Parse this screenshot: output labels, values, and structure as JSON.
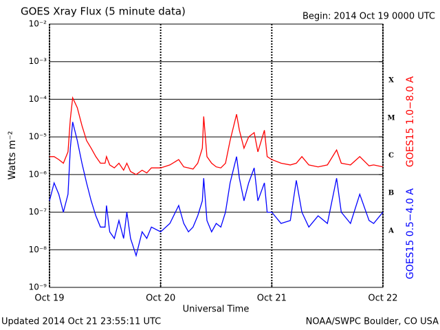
{
  "chart_data": {
    "type": "line",
    "title": "GOES Xray Flux (5 minute data)",
    "subtitle": "Begin:  2014 Oct 19 0000 UTC",
    "y_label": "Watts m⁻²",
    "x_label": "Universal Time",
    "footer_left": "Updated 2014 Oct 21 23:55:11 UTC",
    "footer_right": "NOAA/SWPC Boulder, CO USA",
    "class_labels": [
      "X",
      "M",
      "C",
      "B",
      "A"
    ],
    "log_y": true,
    "grid": true,
    "legend": "right",
    "xlim": [
      0,
      72
    ],
    "xticks": [
      {
        "value": 0,
        "label": "Oct 19"
      },
      {
        "value": 24,
        "label": "Oct 20"
      },
      {
        "value": 48,
        "label": "Oct 21"
      },
      {
        "value": 72,
        "label": "Oct 22"
      }
    ],
    "ylim": [
      1e-09,
      0.01
    ],
    "yticks": [
      {
        "value": 0.01,
        "label": "10⁻²"
      },
      {
        "value": 0.001,
        "label": "10⁻³"
      },
      {
        "value": 0.0001,
        "label": "10⁻⁴"
      },
      {
        "value": 1e-05,
        "label": "10⁻⁵"
      },
      {
        "value": 1e-06,
        "label": "10⁻⁶"
      },
      {
        "value": 1e-07,
        "label": "10⁻⁷"
      },
      {
        "value": 1e-08,
        "label": "10⁻⁸"
      },
      {
        "value": 1e-09,
        "label": "10⁻⁹"
      }
    ],
    "x": [
      0,
      1,
      2,
      3,
      4,
      4.5,
      5,
      6,
      7,
      8,
      9,
      10,
      11,
      12,
      12.3,
      13,
      14,
      15,
      16,
      16.7,
      17.5,
      18.7,
      20,
      21,
      22,
      24,
      26,
      27.9,
      29,
      30,
      31,
      32,
      33,
      33.3,
      34,
      35,
      36,
      37,
      38,
      39,
      40.4,
      41,
      42,
      43,
      44.2,
      45,
      46.4,
      47,
      48,
      50,
      52,
      53.3,
      54.5,
      56,
      58,
      60,
      62,
      63,
      65,
      67,
      69,
      70,
      72
    ],
    "series": [
      {
        "name": "GOES15 1.0−8.0 A",
        "color": "#ff0000",
        "values": [
          3e-06,
          3e-06,
          2.5e-06,
          2e-06,
          4e-06,
          3e-05,
          0.00011,
          6e-05,
          2e-05,
          8e-06,
          5e-06,
          3e-06,
          2e-06,
          2e-06,
          3e-06,
          1.8e-06,
          1.5e-06,
          2e-06,
          1.3e-06,
          2e-06,
          1.2e-06,
          1e-06,
          1.3e-06,
          1.1e-06,
          1.5e-06,
          1.5e-06,
          1.8e-06,
          2.5e-06,
          1.6e-06,
          1.5e-06,
          1.4e-06,
          2e-06,
          5e-06,
          3.5e-05,
          3e-06,
          2e-06,
          1.6e-06,
          1.5e-06,
          2e-06,
          8e-06,
          4e-05,
          1.5e-05,
          5e-06,
          1e-05,
          1.3e-05,
          4e-06,
          1.5e-05,
          3e-06,
          2.5e-06,
          2e-06,
          1.8e-06,
          2e-06,
          3e-06,
          1.8e-06,
          1.6e-06,
          1.8e-06,
          4.5e-06,
          2e-06,
          1.8e-06,
          3e-06,
          1.7e-06,
          1.8e-06,
          1.6e-06
        ]
      },
      {
        "name": "GOES15 0.5−4.0 A",
        "color": "#0000ff",
        "values": [
          2e-07,
          6e-07,
          3e-07,
          1e-07,
          3e-07,
          5e-06,
          2.5e-05,
          8e-06,
          2e-06,
          6e-07,
          2e-07,
          8e-08,
          4e-08,
          4e-08,
          1.5e-07,
          3e-08,
          2e-08,
          6e-08,
          2e-08,
          1e-07,
          2e-08,
          7e-09,
          3e-08,
          2e-08,
          4e-08,
          3e-08,
          5e-08,
          1.5e-07,
          5e-08,
          3e-08,
          4e-08,
          8e-08,
          2e-07,
          8e-07,
          6e-08,
          3e-08,
          5e-08,
          4e-08,
          1e-07,
          6e-07,
          3e-06,
          8e-07,
          2e-07,
          6e-07,
          1.5e-06,
          2e-07,
          6e-07,
          1e-07,
          1e-07,
          5e-08,
          6e-08,
          7e-07,
          1e-07,
          4e-08,
          8e-08,
          5e-08,
          8e-07,
          1e-07,
          5e-08,
          3e-07,
          6e-08,
          5e-08,
          1e-07
        ]
      }
    ]
  }
}
